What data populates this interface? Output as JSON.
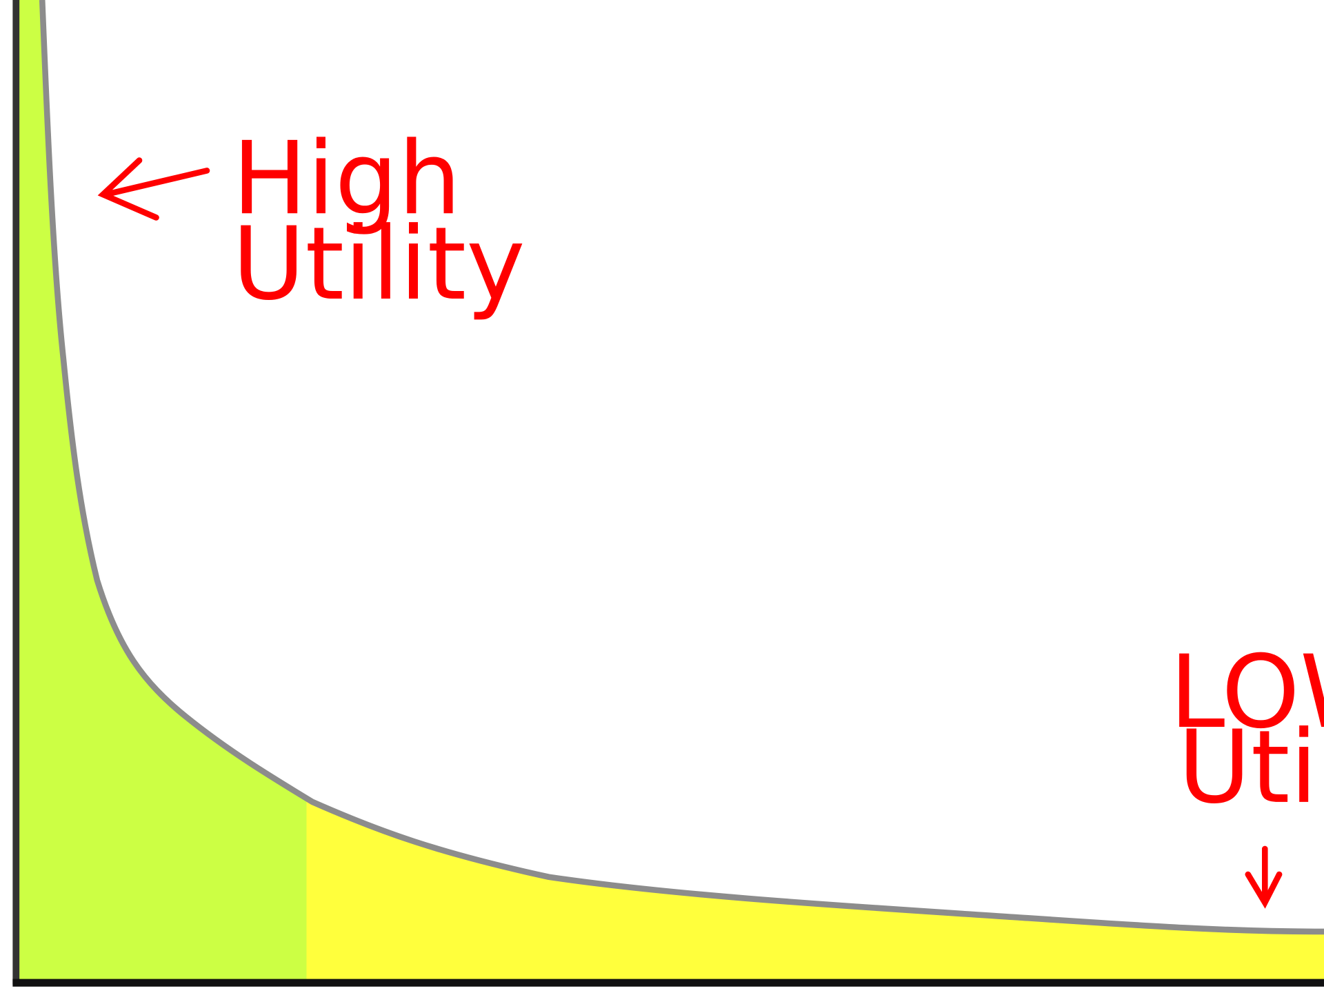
{
  "annotations": {
    "high": {
      "line1": "High",
      "line2": "Utility"
    },
    "low": {
      "line1": "LOW",
      "line2": "Utility"
    }
  }
}
